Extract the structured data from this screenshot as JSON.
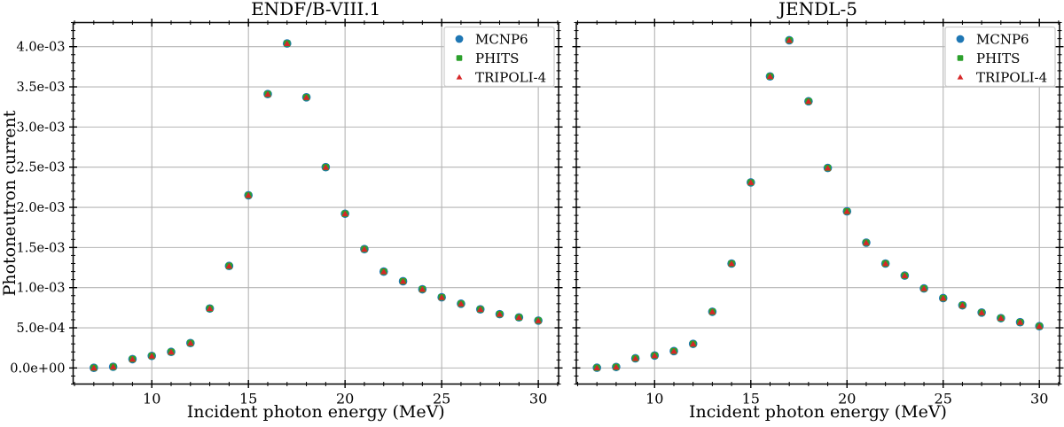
{
  "figure": {
    "background": "#ffffff",
    "grid_color": "#b4b4b4",
    "spine_color": "#000000",
    "text_color": "#000000",
    "legend_border_color": "#cccccc",
    "legend_background": "#ffffff"
  },
  "chart_data": [
    {
      "type": "scatter",
      "title": "ENDF/B-VIII.1",
      "xlabel": "Incident photon energy (MeV)",
      "ylabel": "Photoneutron current",
      "xlim": [
        5.93,
        31.05
      ],
      "ylim": [
        -0.0002,
        0.0043
      ],
      "grid": true,
      "legend_position": "upper right",
      "x_major_ticks": [
        10,
        15,
        20,
        25,
        30
      ],
      "x_tick_labels": [
        "10",
        "15",
        "20",
        "25",
        "30"
      ],
      "x_minor_step": 1,
      "y_major_ticks": [
        0,
        0.0005,
        0.001,
        0.0015,
        0.002,
        0.0025,
        0.003,
        0.0035,
        0.004
      ],
      "y_tick_labels": [
        "0.0e+00",
        "5.0e-04",
        "1.0e-03",
        "1.5e-03",
        "2.0e-03",
        "2.5e-03",
        "3.0e-03",
        "3.5e-03",
        "4.0e-03"
      ],
      "y_minor_step": 0.0001,
      "x": [
        7,
        8,
        9,
        10,
        11,
        12,
        13,
        14,
        15,
        16,
        17,
        18,
        19,
        20,
        21,
        22,
        23,
        24,
        25,
        26,
        27,
        28,
        29,
        30
      ],
      "series": [
        {
          "name": "MCNP6",
          "marker": "circle",
          "color": "#1f77b4",
          "values": [
            2e-06,
            1.5e-05,
            0.00011,
            0.00015,
            0.0002,
            0.00031,
            0.00074,
            0.00127,
            0.00215,
            0.00341,
            0.00404,
            0.00337,
            0.0025,
            0.00192,
            0.00148,
            0.0012,
            0.00108,
            0.00098,
            0.00088,
            0.0008,
            0.00073,
            0.00067,
            0.00063,
            0.00059
          ]
        },
        {
          "name": "PHITS",
          "marker": "square",
          "color": "#2ca02c",
          "values": [
            2e-06,
            1.5e-05,
            0.00011,
            0.00015,
            0.0002,
            0.00031,
            0.00074,
            0.00127,
            0.00215,
            0.00341,
            0.00404,
            0.00337,
            0.0025,
            0.00192,
            0.00148,
            0.0012,
            0.00108,
            0.00098,
            0.00088,
            0.0008,
            0.00073,
            0.00067,
            0.00063,
            0.00059
          ]
        },
        {
          "name": "TRIPOLI-4",
          "marker": "triangle",
          "color": "#d62728",
          "values": [
            2e-06,
            1.5e-05,
            0.00011,
            0.00015,
            0.0002,
            0.00031,
            0.00074,
            0.00127,
            0.00215,
            0.00341,
            0.00404,
            0.00337,
            0.0025,
            0.00192,
            0.00148,
            0.0012,
            0.00108,
            0.00098,
            0.00088,
            0.0008,
            0.00073,
            0.00067,
            0.00063,
            0.00059
          ]
        }
      ]
    },
    {
      "type": "scatter",
      "title": "JENDL-5",
      "xlabel": "Incident photon energy (MeV)",
      "ylabel": "",
      "xlim": [
        5.93,
        31.05
      ],
      "ylim": [
        -0.0002,
        0.0043
      ],
      "grid": true,
      "legend_position": "upper right",
      "x_major_ticks": [
        10,
        15,
        20,
        25,
        30
      ],
      "x_tick_labels": [
        "10",
        "15",
        "20",
        "25",
        "30"
      ],
      "x_minor_step": 1,
      "y_major_ticks": [
        0,
        0.0005,
        0.001,
        0.0015,
        0.002,
        0.0025,
        0.003,
        0.0035,
        0.004
      ],
      "y_tick_labels": [],
      "y_minor_step": 0.0001,
      "x": [
        7,
        8,
        9,
        10,
        11,
        12,
        13,
        14,
        15,
        16,
        17,
        18,
        19,
        20,
        21,
        22,
        23,
        24,
        25,
        26,
        27,
        28,
        29,
        30
      ],
      "series": [
        {
          "name": "MCNP6",
          "marker": "circle",
          "color": "#1f77b4",
          "values": [
            3e-06,
            1.2e-05,
            0.00012,
            0.000155,
            0.00021,
            0.0003,
            0.0007,
            0.0013,
            0.00231,
            0.00363,
            0.00408,
            0.00332,
            0.00249,
            0.00195,
            0.00156,
            0.0013,
            0.00115,
            0.00099,
            0.00087,
            0.00078,
            0.00069,
            0.00062,
            0.00057,
            0.00052
          ]
        },
        {
          "name": "PHITS",
          "marker": "square",
          "color": "#2ca02c",
          "values": [
            3e-06,
            1.2e-05,
            0.00012,
            0.000155,
            0.00021,
            0.0003,
            0.0007,
            0.0013,
            0.00231,
            0.00363,
            0.00408,
            0.00332,
            0.00249,
            0.00195,
            0.00156,
            0.0013,
            0.00115,
            0.00099,
            0.00087,
            0.00078,
            0.00069,
            0.00062,
            0.00057,
            0.00052
          ]
        },
        {
          "name": "TRIPOLI-4",
          "marker": "triangle",
          "color": "#d62728",
          "values": [
            3e-06,
            1.2e-05,
            0.00012,
            0.000155,
            0.00021,
            0.0003,
            0.0007,
            0.0013,
            0.00231,
            0.00363,
            0.00408,
            0.00332,
            0.00249,
            0.00195,
            0.00156,
            0.0013,
            0.00115,
            0.00099,
            0.00087,
            0.00078,
            0.00069,
            0.00062,
            0.00057,
            0.00052
          ]
        }
      ]
    }
  ]
}
